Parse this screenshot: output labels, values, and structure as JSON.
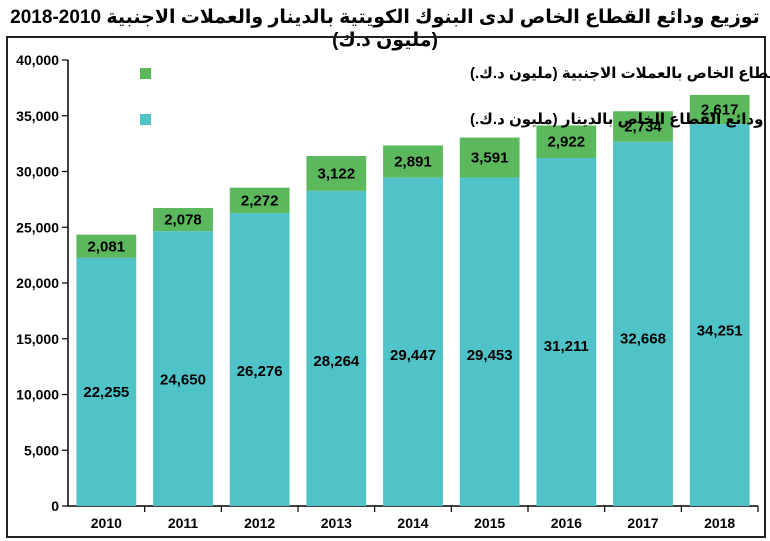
{
  "chart_data": {
    "type": "bar",
    "stacked": true,
    "title": "توزيع ودائع القطاع الخاص لدى البنوك الكويتية بالدينار والعملات الاجنبية 2010-2018 (مليون د.ك)",
    "categories": [
      "2010",
      "2011",
      "2012",
      "2013",
      "2014",
      "2015",
      "2016",
      "2017",
      "2018"
    ],
    "series": [
      {
        "name": "ودائع القطاع الخاص بالدينار (مليون د.ك.)",
        "color": "#4FC3C8",
        "values": [
          22255,
          24650,
          26276,
          28264,
          29447,
          29453,
          31211,
          32668,
          34251
        ],
        "labels": [
          "22,255",
          "24,650",
          "26,276",
          "28,264",
          "29,447",
          "29,453",
          "31,211",
          "32,668",
          "34,251"
        ]
      },
      {
        "name": "ودائع القطاع الخاص بالعملات الاجنبية (مليون د.ك.)",
        "color": "#5CB85C",
        "values": [
          2081,
          2078,
          2272,
          3122,
          2891,
          3591,
          2922,
          2734,
          2617
        ],
        "labels": [
          "2,081",
          "2,078",
          "2,272",
          "3,122",
          "2,891",
          "3,591",
          "2,922",
          "2,734",
          "2,617"
        ]
      }
    ],
    "ylim": [
      0,
      40000
    ],
    "yticks": [
      0,
      5000,
      10000,
      15000,
      20000,
      25000,
      30000,
      35000,
      40000
    ],
    "ytick_labels": [
      "0",
      "5,000",
      "10,000",
      "15,000",
      "20,000",
      "25,000",
      "30,000",
      "35,000",
      "40,000"
    ],
    "grid": false,
    "legend": "top-left"
  }
}
